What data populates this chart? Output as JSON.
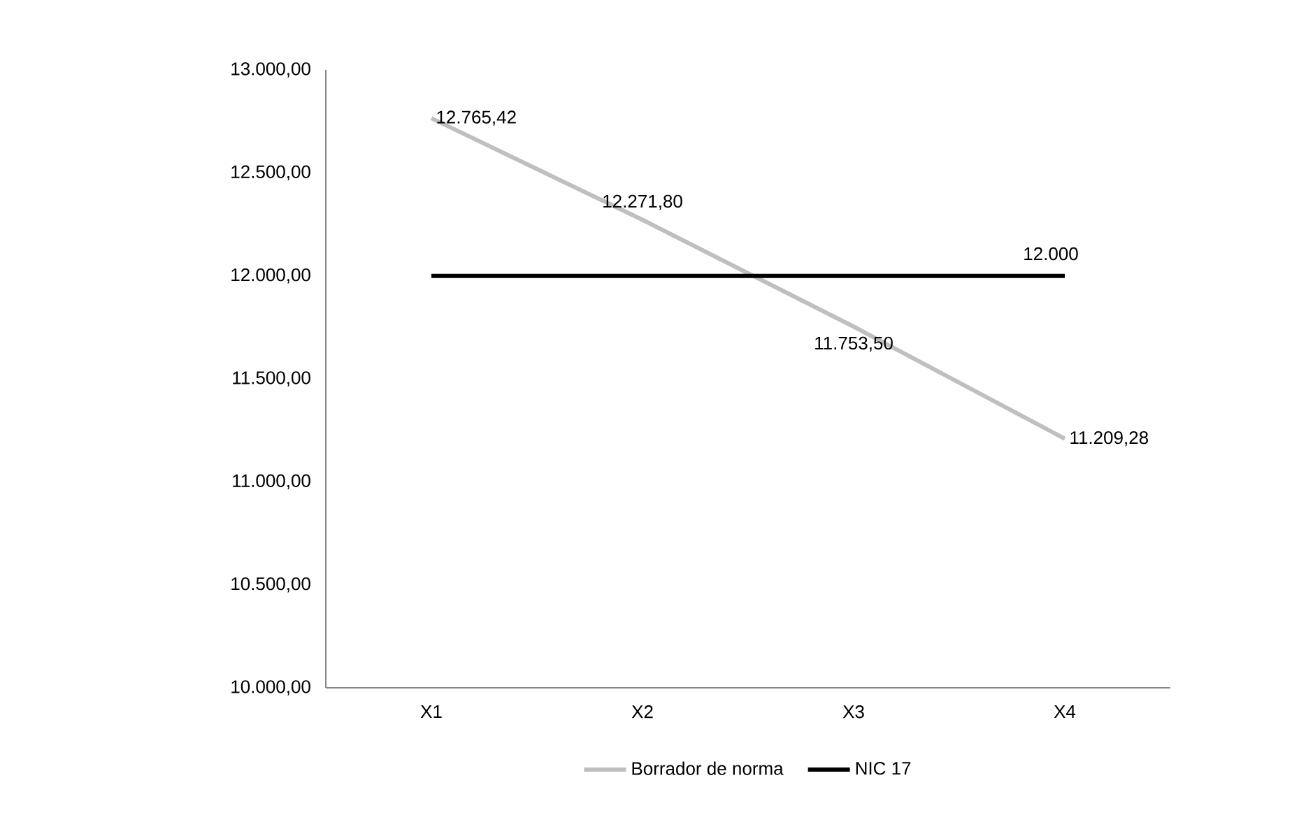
{
  "chart_data": {
    "type": "line",
    "categories": [
      "X1",
      "X2",
      "X3",
      "X4"
    ],
    "series": [
      {
        "name": "Borrador de norma",
        "color": "#bfbfbf",
        "values": [
          12765.42,
          12271.8,
          11753.5,
          11209.28
        ],
        "value_labels": [
          "12.765,42",
          "12.271,80",
          "11.753,50",
          "11.209,28"
        ]
      },
      {
        "name": "NIC 17",
        "color": "#000000",
        "values": [
          12000,
          12000,
          12000,
          12000
        ],
        "value_labels": [
          null,
          null,
          null,
          "12.000"
        ]
      }
    ],
    "ylim": [
      10000,
      13000
    ],
    "yticks": [
      {
        "value": 10000,
        "label": "10.000,00"
      },
      {
        "value": 10500,
        "label": "10.500,00"
      },
      {
        "value": 11000,
        "label": "11.000,00"
      },
      {
        "value": 11500,
        "label": "11.500,00"
      },
      {
        "value": 12000,
        "label": "12.000,00"
      },
      {
        "value": 12500,
        "label": "12.500,00"
      },
      {
        "value": 13000,
        "label": "13.000,00"
      }
    ],
    "grid": false,
    "legend": "bottom",
    "marker": "none",
    "line_style": "solid"
  }
}
